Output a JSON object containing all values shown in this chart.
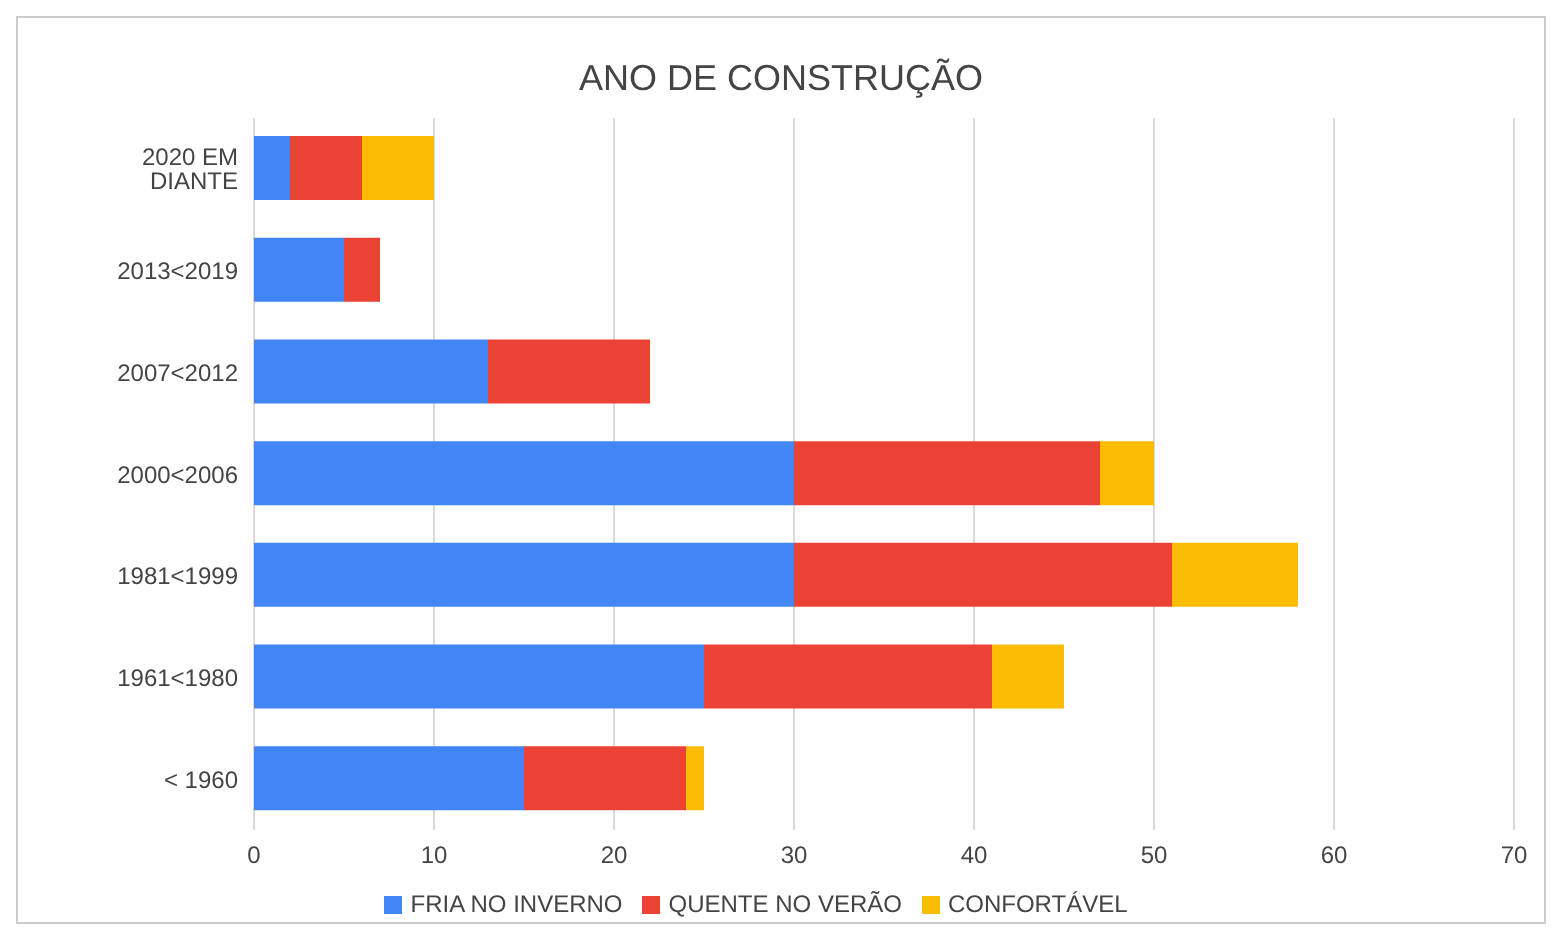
{
  "chart_data": {
    "type": "bar",
    "orientation": "horizontal",
    "stacked": true,
    "title": "ANO DE CONSTRUÇÃO",
    "categories": [
      "2020 EM DIANTE",
      "2013<2019",
      "2007<2012",
      "2000<2006",
      "1981<1999",
      "1961<1980",
      "< 1960"
    ],
    "series": [
      {
        "name": "FRIA NO INVERNO",
        "color": "#4285f4",
        "values": [
          2,
          5,
          13,
          30,
          30,
          25,
          15
        ]
      },
      {
        "name": "QUENTE NO VERÃO",
        "color": "#ea4335",
        "values": [
          4,
          2,
          9,
          17,
          21,
          16,
          9
        ]
      },
      {
        "name": "CONFORTÁVEL",
        "color": "#fbbc04",
        "values": [
          4,
          null,
          null,
          3,
          7,
          4,
          1
        ]
      }
    ],
    "xlim": [
      0,
      70
    ],
    "xticks": [
      0,
      10,
      20,
      30,
      40,
      50,
      60,
      70
    ],
    "grid": "x",
    "legend": "bottom"
  }
}
